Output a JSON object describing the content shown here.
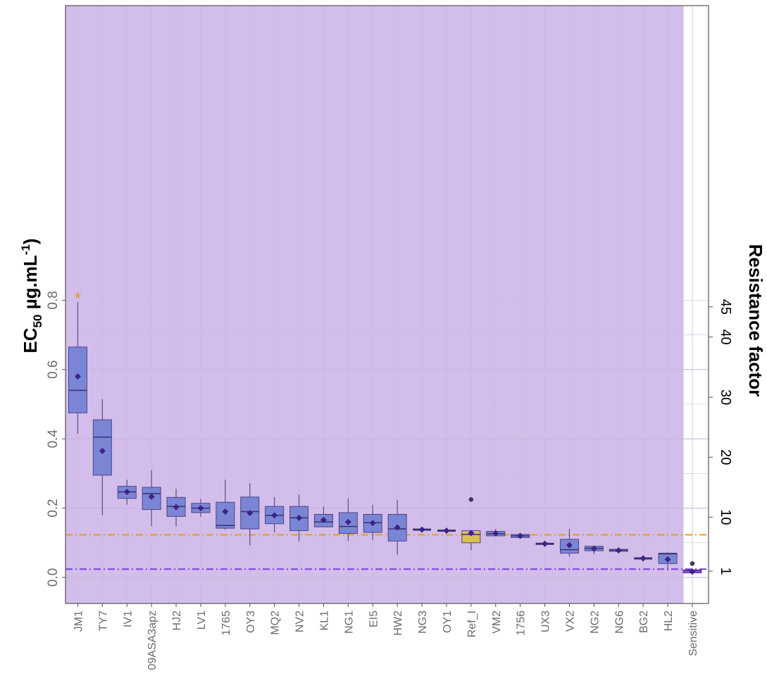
{
  "chart_data": {
    "type": "boxplot",
    "ylabel_main": "EC",
    "ylabel_sub": "50",
    "ylabel_unit": " µg.mL",
    "ylabel_sup": "-1",
    "ylabel_close": ")",
    "y2label": "Resistance factor",
    "ylim": [
      -0.04,
      0.83
    ],
    "yticks": [
      "0.0",
      "0.2",
      "0.4",
      "0.6",
      "0.8"
    ],
    "ytick_values": [
      0.0,
      0.2,
      0.4,
      0.6,
      0.8
    ],
    "y2ticks": [
      "1",
      "10",
      "20",
      "30",
      "40",
      "45"
    ],
    "y2tick_values": [
      0.018,
      0.174,
      0.347,
      0.52,
      0.694,
      0.781
    ],
    "reference_lines": [
      {
        "value": 0.123,
        "color": "#e0a11b"
      },
      {
        "value": 0.024,
        "color": "#7b3fe4"
      }
    ],
    "colors": {
      "background": "#d3bdeb",
      "box": "#7b85d6",
      "box_ref": "#d9c04f",
      "box_sensitive": "#9b3ff0",
      "mean": "#3b2486",
      "asterisk": "#e6983a"
    },
    "grid": true,
    "categories": [
      "JM1",
      "TY7",
      "IV1",
      "09ASA3apz",
      "HJ2",
      "LV1",
      "1765",
      "OY3",
      "MQ2",
      "NV2",
      "KL1",
      "NG1",
      "EI5",
      "HW2",
      "NG3",
      "OY1",
      "Ref_I",
      "VM2",
      "1756",
      "UX3",
      "VX2",
      "NG2",
      "NG6",
      "BG2",
      "HL2",
      "Sensitive"
    ],
    "boxes": [
      {
        "min": 0.415,
        "q1": 0.475,
        "median": 0.54,
        "q3": 0.665,
        "max": 0.795,
        "mean": 0.58,
        "kind": "normal"
      },
      {
        "min": 0.18,
        "q1": 0.295,
        "median": 0.405,
        "q3": 0.455,
        "max": 0.515,
        "mean": 0.365,
        "kind": "normal"
      },
      {
        "min": 0.21,
        "q1": 0.228,
        "median": 0.247,
        "q3": 0.263,
        "max": 0.282,
        "mean": 0.247,
        "kind": "normal"
      },
      {
        "min": 0.148,
        "q1": 0.196,
        "median": 0.242,
        "q3": 0.26,
        "max": 0.31,
        "mean": 0.233,
        "kind": "normal"
      },
      {
        "min": 0.147,
        "q1": 0.176,
        "median": 0.205,
        "q3": 0.231,
        "max": 0.256,
        "mean": 0.203,
        "kind": "normal"
      },
      {
        "min": 0.175,
        "q1": 0.187,
        "median": 0.2,
        "q3": 0.214,
        "max": 0.227,
        "mean": 0.2,
        "kind": "normal"
      },
      {
        "min": 0.138,
        "q1": 0.142,
        "median": 0.15,
        "q3": 0.217,
        "max": 0.282,
        "mean": 0.19,
        "kind": "normal"
      },
      {
        "min": 0.093,
        "q1": 0.14,
        "median": 0.19,
        "q3": 0.232,
        "max": 0.272,
        "mean": 0.186,
        "kind": "normal"
      },
      {
        "min": 0.13,
        "q1": 0.155,
        "median": 0.179,
        "q3": 0.205,
        "max": 0.232,
        "mean": 0.179,
        "kind": "normal"
      },
      {
        "min": 0.104,
        "q1": 0.135,
        "median": 0.172,
        "q3": 0.205,
        "max": 0.239,
        "mean": 0.172,
        "kind": "normal"
      },
      {
        "min": 0.145,
        "q1": 0.146,
        "median": 0.16,
        "q3": 0.182,
        "max": 0.205,
        "mean": 0.166,
        "kind": "normal"
      },
      {
        "min": 0.105,
        "q1": 0.127,
        "median": 0.147,
        "q3": 0.187,
        "max": 0.228,
        "mean": 0.16,
        "kind": "normal"
      },
      {
        "min": 0.108,
        "q1": 0.13,
        "median": 0.158,
        "q3": 0.182,
        "max": 0.21,
        "mean": 0.157,
        "kind": "normal"
      },
      {
        "min": 0.066,
        "q1": 0.105,
        "median": 0.14,
        "q3": 0.182,
        "max": 0.224,
        "mean": 0.144,
        "kind": "normal"
      },
      {
        "min": 0.137,
        "q1": 0.137,
        "median": 0.138,
        "q3": 0.139,
        "max": 0.139,
        "mean": 0.138,
        "kind": "flat"
      },
      {
        "min": 0.134,
        "q1": 0.134,
        "median": 0.135,
        "q3": 0.136,
        "max": 0.136,
        "mean": 0.135,
        "kind": "flat"
      },
      {
        "min": 0.078,
        "q1": 0.1,
        "median": 0.124,
        "q3": 0.135,
        "max": 0.135,
        "mean": 0.128,
        "kind": "ref",
        "outlier": 0.225
      },
      {
        "min": 0.12,
        "q1": 0.12,
        "median": 0.126,
        "q3": 0.133,
        "max": 0.14,
        "mean": 0.127,
        "kind": "normal"
      },
      {
        "min": 0.115,
        "q1": 0.115,
        "median": 0.12,
        "q3": 0.124,
        "max": 0.127,
        "mean": 0.12,
        "kind": "normal"
      },
      {
        "min": 0.097,
        "q1": 0.097,
        "median": 0.097,
        "q3": 0.097,
        "max": 0.097,
        "mean": 0.097,
        "kind": "flat"
      },
      {
        "min": 0.06,
        "q1": 0.07,
        "median": 0.08,
        "q3": 0.11,
        "max": 0.14,
        "mean": 0.093,
        "kind": "normal"
      },
      {
        "min": 0.067,
        "q1": 0.077,
        "median": 0.084,
        "q3": 0.09,
        "max": 0.09,
        "mean": 0.083,
        "kind": "normal"
      },
      {
        "min": 0.073,
        "q1": 0.075,
        "median": 0.079,
        "q3": 0.081,
        "max": 0.081,
        "mean": 0.078,
        "kind": "normal"
      },
      {
        "min": 0.055,
        "q1": 0.055,
        "median": 0.055,
        "q3": 0.056,
        "max": 0.056,
        "mean": 0.055,
        "kind": "flat"
      },
      {
        "min": 0.02,
        "q1": 0.04,
        "median": 0.068,
        "q3": 0.07,
        "max": 0.072,
        "mean": 0.052,
        "kind": "normal"
      },
      {
        "min": 0.007,
        "q1": 0.013,
        "median": 0.021,
        "q3": 0.021,
        "max": 0.021,
        "mean": 0.017,
        "kind": "sensitive",
        "outlier": 0.04
      }
    ],
    "asterisk": {
      "category": "JM1",
      "value": 0.81,
      "text": "*"
    }
  }
}
